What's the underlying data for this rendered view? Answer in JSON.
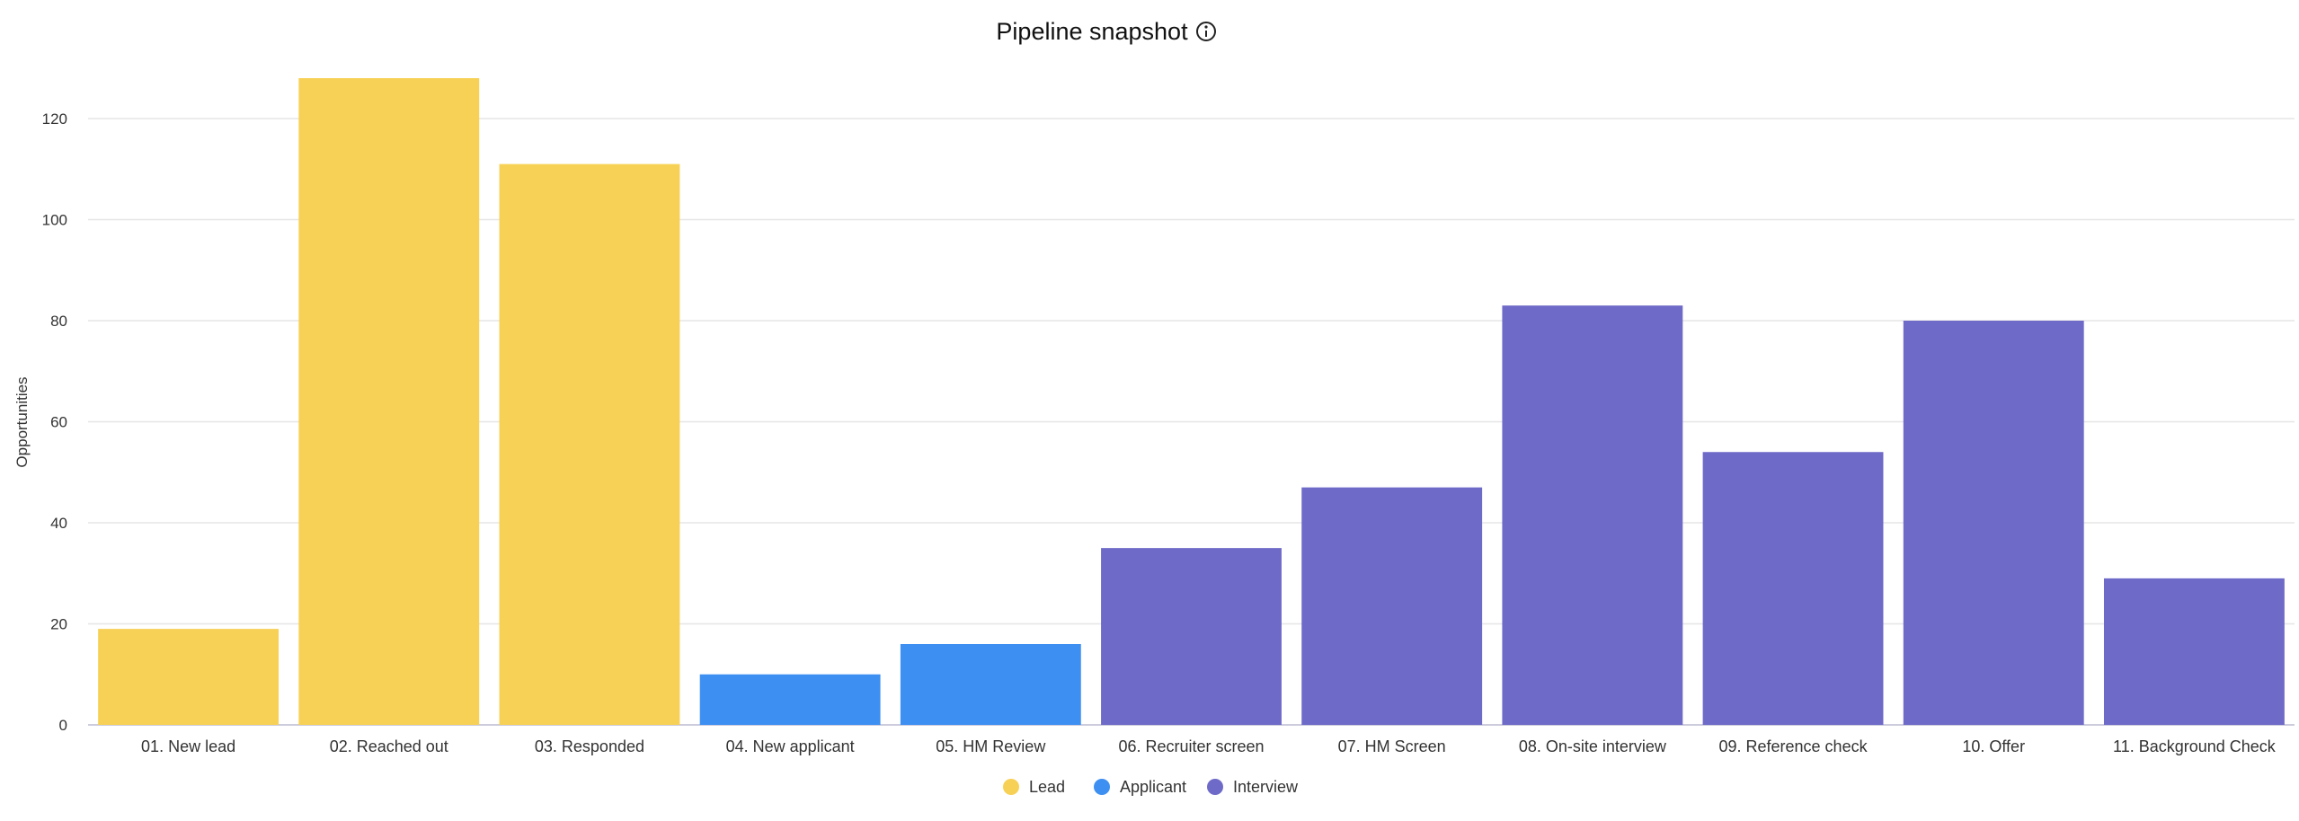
{
  "chart_data": {
    "type": "bar",
    "title": "Pipeline snapshot",
    "title_icon": "info-icon",
    "xlabel": "",
    "ylabel": "Opportunities",
    "ylim": [
      0,
      130
    ],
    "yticks": [
      0,
      20,
      40,
      60,
      80,
      100,
      120
    ],
    "grid": true,
    "legend_position": "bottom-center",
    "categories": [
      "01. New lead",
      "02. Reached out",
      "03. Responded",
      "04. New applicant",
      "05. HM Review",
      "06. Recruiter screen",
      "07. HM Screen",
      "08. On-site interview",
      "09. Reference check",
      "10. Offer",
      "11. Background Check"
    ],
    "values": [
      19,
      128,
      111,
      10,
      16,
      35,
      47,
      83,
      54,
      80,
      29
    ],
    "groups": [
      "Lead",
      "Lead",
      "Lead",
      "Applicant",
      "Applicant",
      "Interview",
      "Interview",
      "Interview",
      "Interview",
      "Interview",
      "Interview"
    ],
    "legend": [
      {
        "name": "Lead",
        "color": "#F7D156"
      },
      {
        "name": "Applicant",
        "color": "#3D8FF2"
      },
      {
        "name": "Interview",
        "color": "#6E6AC8"
      }
    ]
  }
}
